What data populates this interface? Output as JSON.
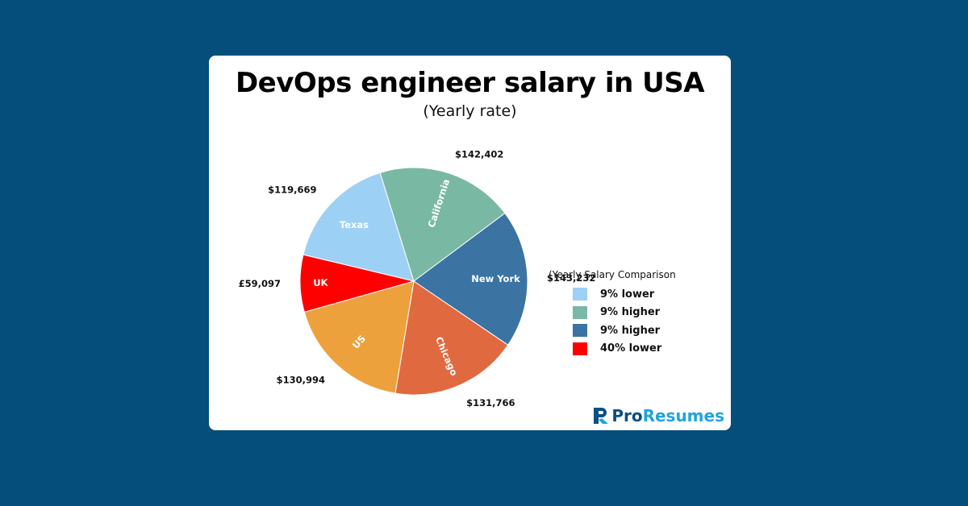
{
  "chart_data": {
    "type": "pie",
    "title": "DevOps engineer salary in USA",
    "subtitle": "(Yearly rate)",
    "slices": [
      {
        "name": "Texas",
        "value": 119669,
        "value_label": "$119,669",
        "color": "#9dd0f5"
      },
      {
        "name": "California",
        "value": 142402,
        "value_label": "$142,402",
        "color": "#79b9a3"
      },
      {
        "name": "New York",
        "value": 143232,
        "value_label": "$143,232",
        "color": "#3b73a3"
      },
      {
        "name": "Chicago",
        "value": 131766,
        "value_label": "$131,766",
        "color": "#e0693f"
      },
      {
        "name": "US",
        "value": 130994,
        "value_label": "$130,994",
        "color": "#eda13d"
      },
      {
        "name": "UK",
        "value": 59097,
        "value_label": "£59,097",
        "color": "#ff0000"
      }
    ],
    "legend": {
      "title": "(Yearly Salary Comparison",
      "placement": "right",
      "items": [
        {
          "label": "9% lower",
          "color": "#9dd0f5"
        },
        {
          "label": "9% higher",
          "color": "#79b9a3"
        },
        {
          "label": "9% higher",
          "color": "#3b73a3"
        },
        {
          "label": "40% lower",
          "color": "#ff0000"
        }
      ]
    }
  },
  "brand": {
    "pro": "Pro",
    "resumes": "Resumes",
    "colors": {
      "primary": "#0b4f7f",
      "accent": "#1fa3e0"
    }
  }
}
